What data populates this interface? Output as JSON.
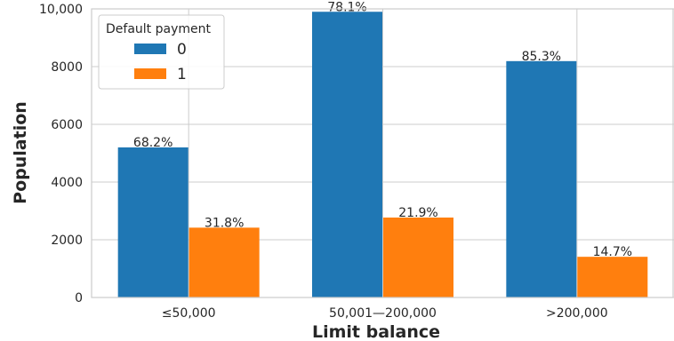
{
  "chart_data": {
    "type": "bar",
    "categories": [
      "≤50,000",
      "50,001—200,000",
      ">200,000"
    ],
    "series": [
      {
        "name": "0",
        "values": [
          5200,
          9900,
          8190
        ],
        "labels": [
          "68.2%",
          "78.1%",
          "85.3%"
        ],
        "color": "#1f77b4"
      },
      {
        "name": "1",
        "values": [
          2420,
          2770,
          1410
        ],
        "labels": [
          "31.8%",
          "21.9%",
          "14.7%"
        ],
        "color": "#ff7f0e"
      }
    ],
    "xlabel": "Limit balance",
    "ylabel": "Population",
    "ylim": [
      0,
      10000
    ],
    "yticks": [
      0,
      2000,
      4000,
      6000,
      8000,
      10000
    ],
    "ytick_labels": [
      "0",
      "2000",
      "4000",
      "6000",
      "8000",
      "10,000"
    ],
    "legend_title": "Default payment",
    "legend_position": "upper-left",
    "grid": true
  }
}
